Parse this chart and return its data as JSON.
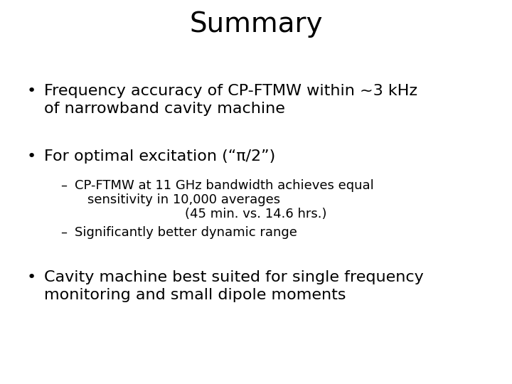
{
  "title": "Summary",
  "title_fontsize": 28,
  "background_color": "#ffffff",
  "text_color": "#000000",
  "bullet1_line1": "Frequency accuracy of CP-FTMW within ~3 kHz",
  "bullet1_line2": "of narrowband cavity machine",
  "bullet2_main": "For optimal excitation (“π/2”)",
  "sub1_line1": "CP-FTMW at 11 GHz bandwidth achieves equal",
  "sub1_line2": "sensitivity in 10,000 averages",
  "sub1_line3": "(45 min. vs. 14.6 hrs.)",
  "sub2": "Significantly better dynamic range",
  "bullet3_line1": "Cavity machine best suited for single frequency",
  "bullet3_line2": "monitoring and small dipole moments",
  "bullet_fontsize": 16,
  "sub_fontsize": 13,
  "figsize": [
    7.2,
    5.4
  ],
  "dpi": 100
}
